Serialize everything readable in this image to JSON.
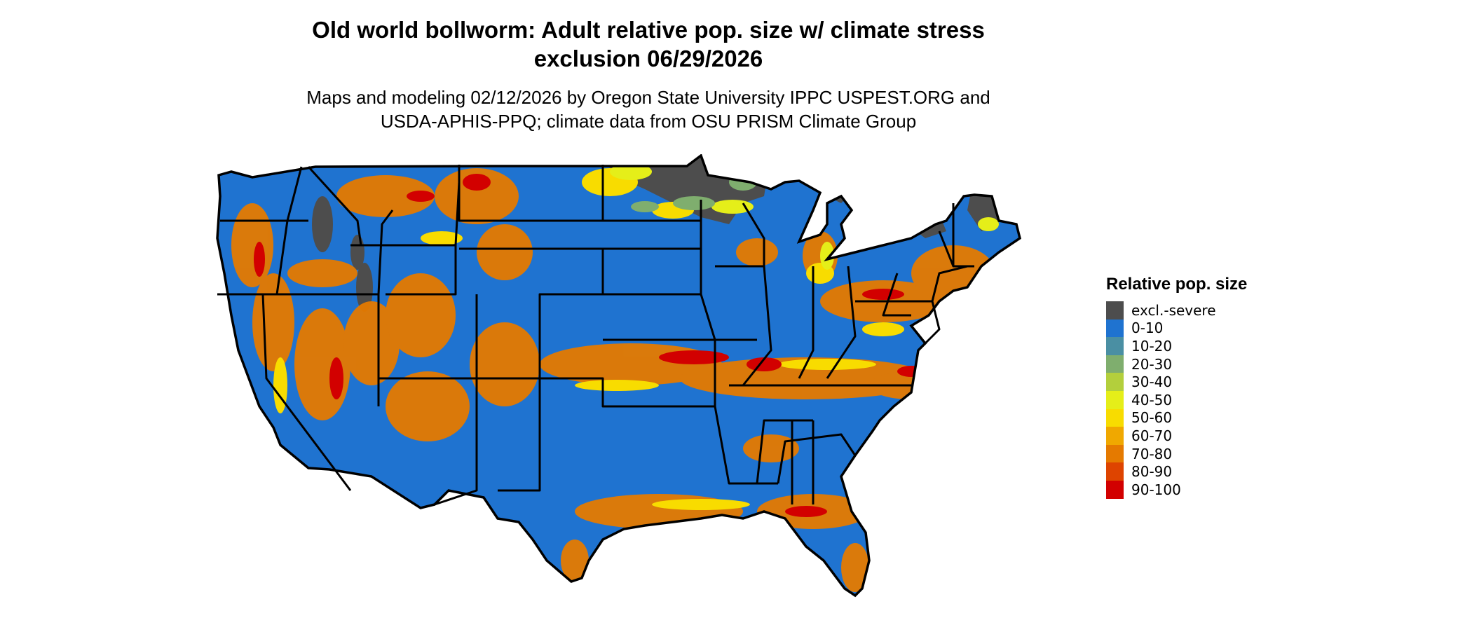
{
  "title_lines": [
    "Old world bollworm: Adult relative pop. size w/ climate stress",
    "exclusion 06/29/2026"
  ],
  "subtitle_lines": [
    "Maps and modeling 02/12/2026 by Oregon State University IPPC USPEST.ORG and",
    "USDA-APHIS-PPQ; climate data from OSU PRISM Climate Group"
  ],
  "legend": {
    "title": "Relative pop. size",
    "items": [
      {
        "label": "excl.-severe",
        "color": "#4d4d4d"
      },
      {
        "label": "0-10",
        "color": "#1f73d0"
      },
      {
        "label": "10-20",
        "color": "#4a8fa3"
      },
      {
        "label": "20-30",
        "color": "#7fae6e"
      },
      {
        "label": "30-40",
        "color": "#b3cf3c"
      },
      {
        "label": "40-50",
        "color": "#e5ee19"
      },
      {
        "label": "50-60",
        "color": "#f8dc00"
      },
      {
        "label": "60-70",
        "color": "#f0a800"
      },
      {
        "label": "70-80",
        "color": "#e57a00"
      },
      {
        "label": "80-90",
        "color": "#de4400"
      },
      {
        "label": "90-100",
        "color": "#d20000"
      }
    ]
  }
}
